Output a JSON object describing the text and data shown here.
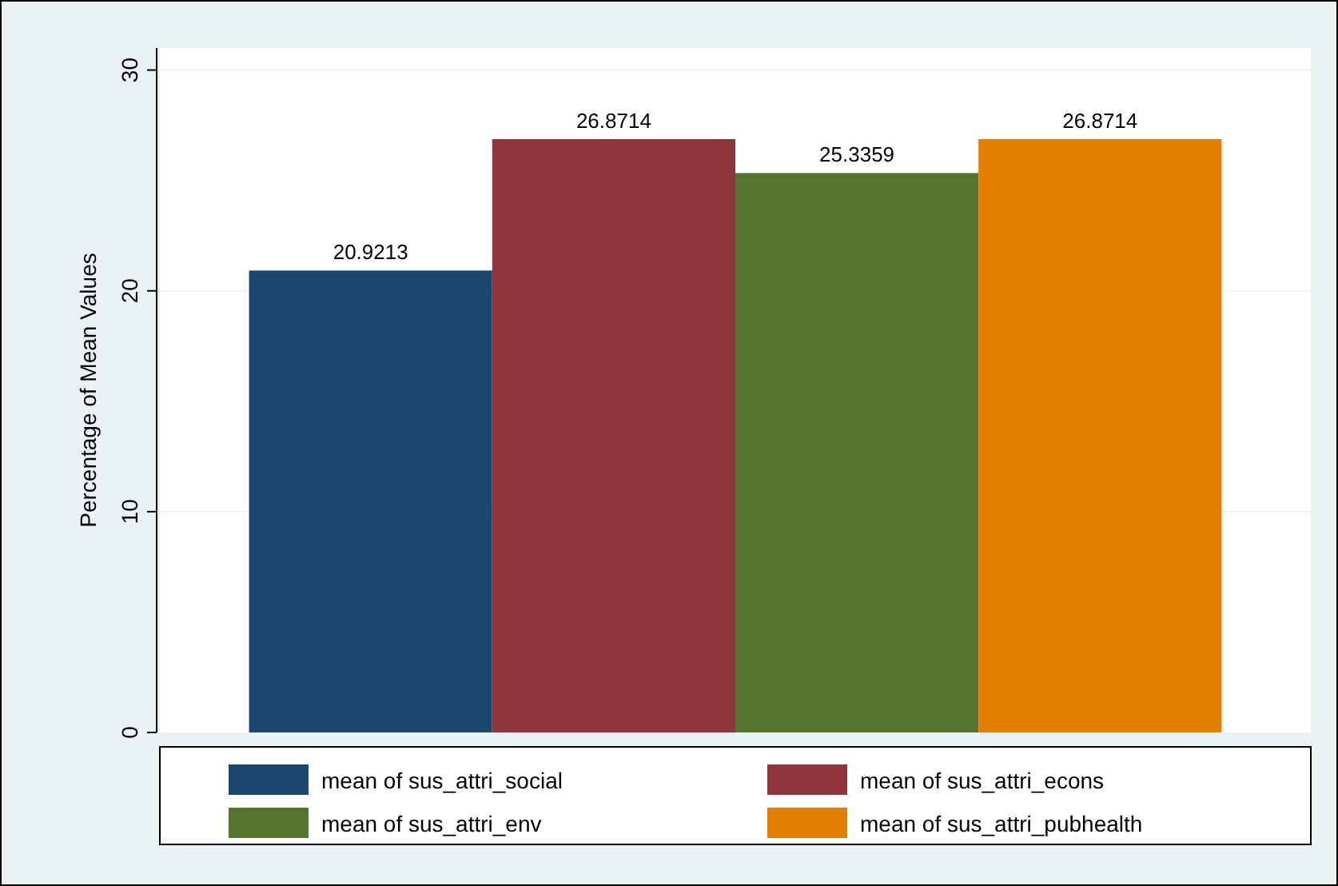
{
  "chart_data": {
    "type": "bar",
    "ylabel": "Percentage of Mean Values",
    "categories": [
      null
    ],
    "series": [
      {
        "name": "mean of sus_attri_social",
        "color": "#1a476f",
        "values": [
          20.9213
        ]
      },
      {
        "name": "mean of sus_attri_econs",
        "color": "#90353b",
        "values": [
          26.8714
        ]
      },
      {
        "name": "mean of sus_attri_env",
        "color": "#55752f",
        "values": [
          25.3359
        ]
      },
      {
        "name": "mean of sus_attri_pubhealth",
        "color": "#e37e00",
        "values": [
          26.8714
        ]
      }
    ],
    "ylim": [
      0,
      31
    ],
    "yticks": [
      0,
      10,
      20,
      30
    ],
    "grid": "y",
    "data_labels": true,
    "legend": "bottom"
  }
}
